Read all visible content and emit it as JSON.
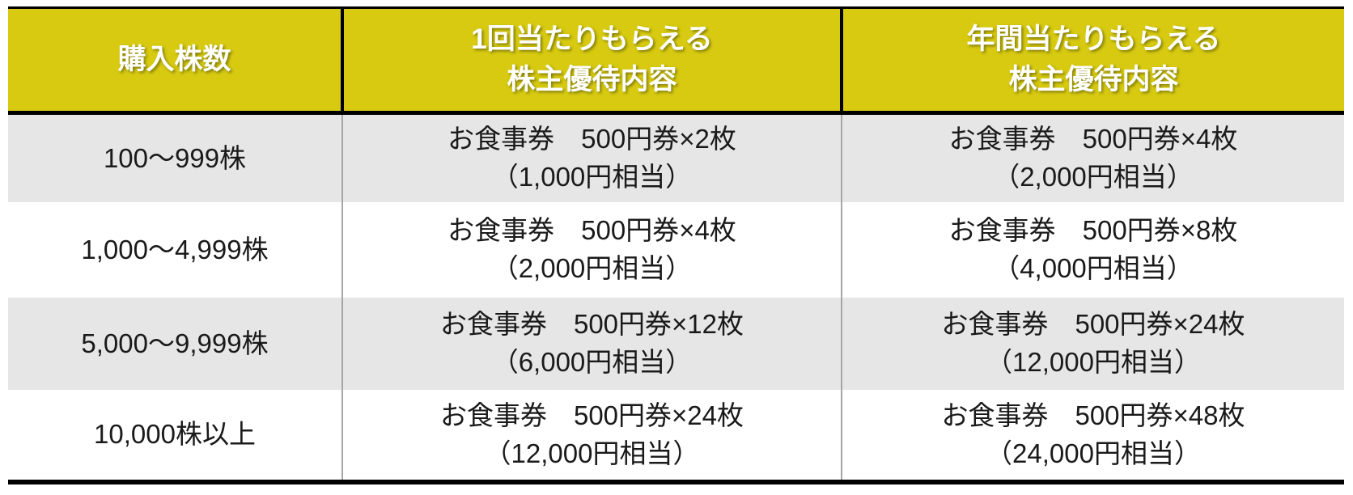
{
  "colors": {
    "header_background": "#d7ca10",
    "header_text": "#ffffff",
    "stripe_row_background": "#e7e6e6",
    "plain_row_background": "#ffffff",
    "outer_border": "#000000",
    "body_column_divider": "#a6a6a6",
    "body_text": "#1a1a1a"
  },
  "table": {
    "headers": {
      "shares": "購入株数",
      "per_time_line1": "1回当たりもらえる",
      "per_time_line2": "株主優待内容",
      "per_year_line1": "年間当たりもらえる",
      "per_year_line2": "株主優待内容"
    },
    "rows": [
      {
        "shares": "100〜999株",
        "per_time_line1": "お食事券　500円券×2枚",
        "per_time_line2": "（1,000円相当）",
        "per_year_line1": "お食事券　500円券×4枚",
        "per_year_line2": "（2,000円相当）"
      },
      {
        "shares": "1,000〜4,999株",
        "per_time_line1": "お食事券　500円券×4枚",
        "per_time_line2": "（2,000円相当）",
        "per_year_line1": "お食事券　500円券×8枚",
        "per_year_line2": "（4,000円相当）"
      },
      {
        "shares": "5,000〜9,999株",
        "per_time_line1": "お食事券　500円券×12枚",
        "per_time_line2": "（6,000円相当）",
        "per_year_line1": "お食事券　500円券×24枚",
        "per_year_line2": "（12,000円相当）"
      },
      {
        "shares": "10,000株以上",
        "per_time_line1": "お食事券　500円券×24枚",
        "per_time_line2": "（12,000円相当）",
        "per_year_line1": "お食事券　500円券×48枚",
        "per_year_line2": "（24,000円相当）"
      }
    ]
  }
}
